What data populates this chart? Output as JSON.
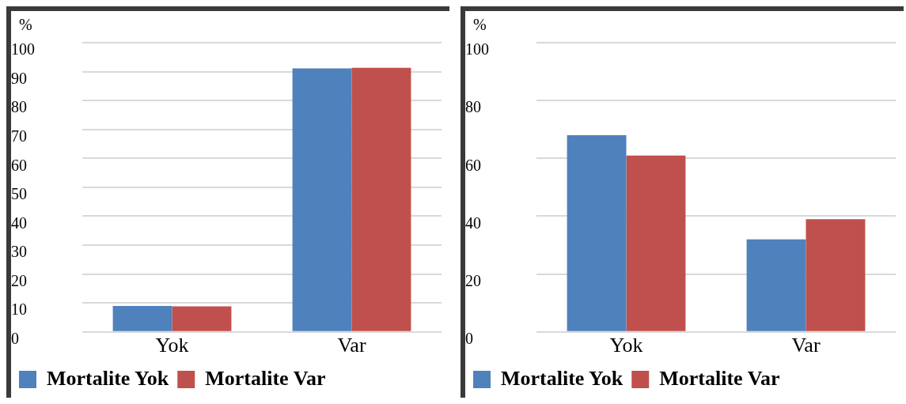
{
  "chart_data": [
    {
      "type": "bar",
      "ylabel": "%",
      "categories": [
        "Yok",
        "Var"
      ],
      "series": [
        {
          "name": "Mortalite Yok",
          "color": "#4f81bd",
          "values": [
            9,
            91.1
          ]
        },
        {
          "name": "Mortalite Var",
          "color": "#c0504d",
          "values": [
            8.8,
            91.3
          ]
        }
      ],
      "ylim": [
        0,
        100
      ],
      "yticks": [
        0,
        10,
        20,
        30,
        40,
        50,
        60,
        70,
        80,
        90,
        100
      ],
      "grid": "y",
      "legend": "bottom"
    },
    {
      "type": "bar",
      "ylabel": "%",
      "categories": [
        "Yok",
        "Var"
      ],
      "series": [
        {
          "name": "Mortalite Yok",
          "color": "#4f81bd",
          "values": [
            68,
            32
          ]
        },
        {
          "name": "Mortalite Var",
          "color": "#c0504d",
          "values": [
            61,
            39
          ]
        }
      ],
      "ylim": [
        0,
        100
      ],
      "yticks": [
        0,
        20,
        40,
        60,
        80,
        100
      ],
      "grid": "y",
      "legend": "bottom"
    }
  ]
}
